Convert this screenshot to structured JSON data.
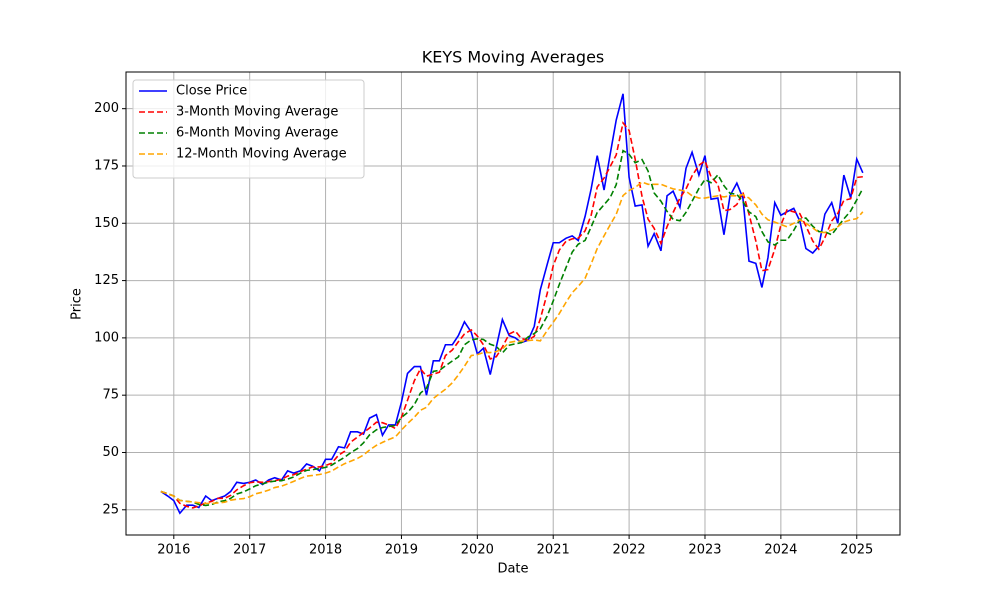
{
  "chart_data": {
    "type": "line",
    "title": "KEYS Moving Averages",
    "xlabel": "Date",
    "ylabel": "Price",
    "xlim": [
      2015.37,
      2025.57
    ],
    "xticks": [
      2016,
      2017,
      2018,
      2019,
      2020,
      2021,
      2022,
      2023,
      2024,
      2025
    ],
    "ylim": [
      14,
      216
    ],
    "yticks": [
      25,
      50,
      75,
      100,
      125,
      150,
      175,
      200
    ],
    "grid": true,
    "legend": "upper left",
    "x": [
      2015.83,
      2015.92,
      2016.0,
      2016.08,
      2016.17,
      2016.25,
      2016.33,
      2016.42,
      2016.5,
      2016.58,
      2016.67,
      2016.75,
      2016.83,
      2016.92,
      2017.0,
      2017.08,
      2017.17,
      2017.25,
      2017.33,
      2017.42,
      2017.5,
      2017.58,
      2017.67,
      2017.75,
      2017.83,
      2017.92,
      2018.0,
      2018.08,
      2018.17,
      2018.25,
      2018.33,
      2018.42,
      2018.5,
      2018.58,
      2018.67,
      2018.75,
      2018.83,
      2018.92,
      2019.0,
      2019.08,
      2019.17,
      2019.25,
      2019.33,
      2019.42,
      2019.5,
      2019.58,
      2019.67,
      2019.75,
      2019.83,
      2019.92,
      2020.0,
      2020.08,
      2020.17,
      2020.25,
      2020.33,
      2020.42,
      2020.5,
      2020.58,
      2020.67,
      2020.75,
      2020.83,
      2020.92,
      2021.0,
      2021.08,
      2021.17,
      2021.25,
      2021.33,
      2021.42,
      2021.5,
      2021.58,
      2021.67,
      2021.75,
      2021.83,
      2021.92,
      2022.0,
      2022.08,
      2022.17,
      2022.25,
      2022.33,
      2022.42,
      2022.5,
      2022.58,
      2022.67,
      2022.75,
      2022.83,
      2022.92,
      2023.0,
      2023.08,
      2023.17,
      2023.25,
      2023.33,
      2023.42,
      2023.5,
      2023.58,
      2023.67,
      2023.75,
      2023.83,
      2023.92,
      2024.0,
      2024.08,
      2024.17,
      2024.25,
      2024.33,
      2024.42,
      2024.5,
      2024.58,
      2024.67,
      2024.75,
      2024.83,
      2024.92,
      2025.0,
      2025.08
    ],
    "series": [
      {
        "name": "Close Price",
        "color": "#0000ff",
        "linestyle": "solid",
        "values": [
          33,
          31,
          29,
          23.5,
          27,
          27,
          26,
          31,
          29,
          30,
          31,
          33,
          37,
          36.5,
          37,
          38,
          36,
          38,
          39,
          38,
          42,
          41,
          42,
          45,
          44,
          42,
          47,
          47,
          52.5,
          52,
          59,
          59,
          58,
          65,
          66.5,
          57.5,
          62,
          62,
          72,
          84.5,
          87.5,
          87.5,
          75,
          90,
          90,
          97,
          97,
          101,
          107,
          102.5,
          93,
          95.5,
          84,
          96,
          108,
          101,
          100,
          98,
          99,
          105,
          121,
          132,
          141.5,
          141.5,
          143.5,
          144.5,
          142.5,
          153,
          165,
          179.5,
          164.5,
          180,
          195,
          206.5,
          170,
          157.5,
          158,
          140,
          145.5,
          138,
          162,
          164,
          157,
          174,
          181,
          171,
          179.5,
          160.5,
          161,
          145,
          162,
          167.5,
          161,
          133.5,
          132.5,
          122,
          135,
          159,
          153.5,
          155,
          156.5,
          151,
          139,
          137,
          140,
          154,
          159,
          150,
          171,
          161,
          178,
          172
        ]
      },
      {
        "name": "3-Month Moving Average",
        "color": "#ff0000",
        "linestyle": "dashed",
        "values": [
          33,
          32,
          31,
          27.8,
          26.5,
          25.8,
          26.7,
          28,
          28.7,
          30,
          30,
          31.3,
          33.7,
          35.5,
          36.8,
          37.2,
          37,
          37.3,
          37.7,
          38.3,
          39.7,
          40.3,
          41.7,
          42.7,
          43.7,
          43.7,
          44.3,
          45.3,
          48.8,
          50.5,
          54.5,
          56.7,
          58.7,
          60.7,
          63.2,
          63,
          62,
          60.5,
          65.3,
          72.8,
          81.3,
          86.5,
          83.3,
          84.2,
          85,
          92.3,
          94.7,
          98.3,
          101.7,
          103.5,
          100.8,
          97,
          90.8,
          91.8,
          96,
          101.7,
          103,
          99.7,
          99,
          100.7,
          108.3,
          119.3,
          131.5,
          138.3,
          142.2,
          143.2,
          143.5,
          146.7,
          153.5,
          165.8,
          169.7,
          174.7,
          179.8,
          193.8,
          190.5,
          178,
          161.8,
          151.8,
          147.8,
          141.2,
          148.5,
          154.7,
          161,
          165,
          170.7,
          175.3,
          177.2,
          170.3,
          167,
          155.5,
          156,
          158.2,
          163.5,
          154,
          142.3,
          129.3,
          129.8,
          138.7,
          149.2,
          155.8,
          155,
          154.2,
          148.8,
          142.3,
          138.7,
          143.7,
          151,
          154.3,
          160,
          160.7,
          170,
          170.3
        ]
      },
      {
        "name": "6-Month Moving Average",
        "color": "#008000",
        "linestyle": "dashed",
        "values": [
          33,
          32,
          31,
          29.1,
          28.7,
          28.4,
          27.3,
          26.9,
          27.3,
          28.4,
          29,
          30,
          31.9,
          32.8,
          34.1,
          35.5,
          36.3,
          37.1,
          37.5,
          37.7,
          38.4,
          39.3,
          41,
          42.2,
          42.5,
          43,
          43.5,
          44.5,
          46.3,
          47.9,
          49.9,
          51.7,
          54.2,
          57.7,
          59.9,
          60.9,
          61.3,
          61.8,
          65.3,
          67.4,
          70.9,
          75.9,
          78.1,
          85.4,
          85.8,
          87.8,
          89.9,
          91.7,
          97,
          99.1,
          99.6,
          99.3,
          97.2,
          96.3,
          93.4,
          96.8,
          97.4,
          97.9,
          100.4,
          101.9,
          104,
          109.5,
          116.1,
          123.3,
          130.8,
          137.4,
          140.9,
          142.5,
          148.4,
          154.7,
          158.1,
          161.2,
          166.8,
          181.7,
          180.1,
          176.4,
          177.8,
          172.8,
          163.2,
          159.6,
          155.2,
          151.7,
          151.1,
          154.8,
          159.6,
          165.2,
          169.1,
          167.7,
          171.1,
          166.4,
          163.1,
          162.6,
          159.5,
          155,
          152.9,
          146.4,
          141.9,
          140.5,
          142.6,
          142.6,
          146.9,
          151.7,
          152.3,
          148.7,
          146.4,
          146.3,
          145,
          148.5,
          151.9,
          155.4,
          160.2,
          165.2
        ]
      },
      {
        "name": "12-Month Moving Average",
        "color": "#ffa500",
        "linestyle": "dashed",
        "values": [
          33,
          32,
          31,
          29.1,
          28.7,
          28.4,
          28.1,
          27.8,
          27.8,
          28,
          28.3,
          29.2,
          29.6,
          29.9,
          30.7,
          32,
          32.7,
          33.6,
          34.7,
          35.3,
          36.3,
          37.4,
          38.7,
          39.7,
          40,
          40.4,
          41,
          41.9,
          43.7,
          45.1,
          46.2,
          47.4,
          48.9,
          51.1,
          53.1,
          54.4,
          55.6,
          56.8,
          59.8,
          62.6,
          65.4,
          68.4,
          69.7,
          73.6,
          75.6,
          77.6,
          80.4,
          83.8,
          87.6,
          92.3,
          92.7,
          93.6,
          93.6,
          94,
          95.2,
          98,
          98.5,
          98.6,
          98.8,
          99.1,
          98.7,
          103.2,
          106.8,
          110.6,
          115.6,
          119.7,
          122.5,
          126,
          132.3,
          139,
          144.5,
          149.3,
          153.9,
          162.1,
          164.3,
          165.6,
          168,
          167,
          167,
          167,
          166,
          165,
          164.5,
          164,
          162,
          161,
          161,
          161.5,
          162,
          161.5,
          162,
          162,
          162.5,
          161,
          158,
          154,
          151.5,
          150.5,
          149.5,
          148.5,
          150,
          151.5,
          150,
          148,
          146,
          146,
          147,
          148.5,
          150.5,
          151.5,
          152,
          155
        ]
      }
    ]
  }
}
